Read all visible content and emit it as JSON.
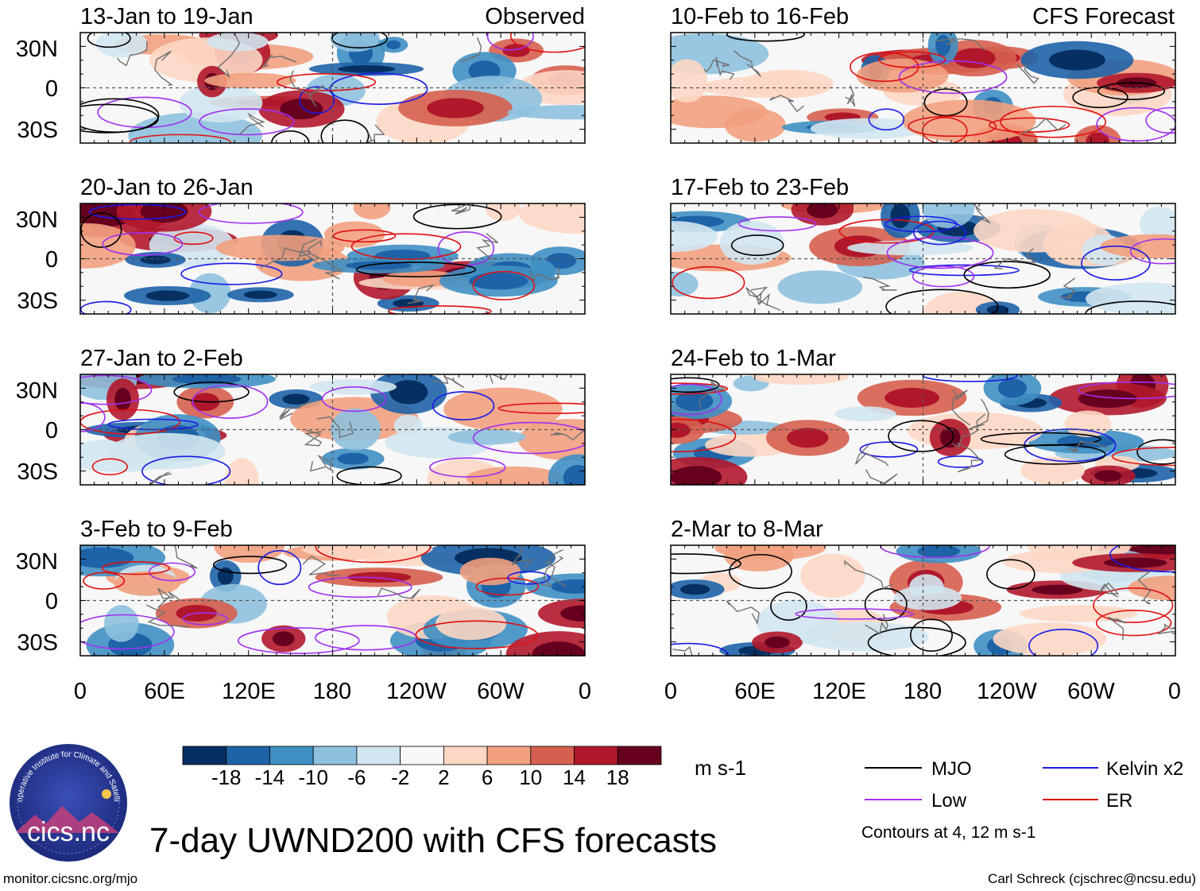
{
  "figure": {
    "title": "7-day UWND200 with CFS forecasts",
    "footer_left": "monitor.cicsnc.org/mjo",
    "footer_right": "Carl Schreck (cjschrec@ncsu.edu)",
    "logo_text": "cics.nc",
    "logo_ring_text": "Cooperative Institute for Climate and Satellites"
  },
  "chart_data": {
    "type": "heatmap",
    "variable": "200-hPa zonal wind anomaly",
    "units": "m s-1",
    "columns": [
      {
        "label": "Observed",
        "panels": [
          {
            "title": "13-Jan to 19-Jan"
          },
          {
            "title": "20-Jan to 26-Jan"
          },
          {
            "title": "27-Jan to 2-Feb"
          },
          {
            "title": "3-Feb to 9-Feb"
          }
        ]
      },
      {
        "label": "CFS Forecast",
        "panels": [
          {
            "title": "10-Feb to 16-Feb"
          },
          {
            "title": "17-Feb to 23-Feb"
          },
          {
            "title": "24-Feb to 1-Mar"
          },
          {
            "title": "2-Mar to 8-Mar"
          }
        ]
      }
    ],
    "y_ticks": [
      "30N",
      "0",
      "30S"
    ],
    "y_range_deg": [
      -40,
      40
    ],
    "x_ticks": [
      "0",
      "60E",
      "120E",
      "180",
      "120W",
      "60W",
      "0"
    ],
    "x_range_deg": [
      0,
      360
    ],
    "colorbar": {
      "tick_labels": [
        "-18",
        "-14",
        "-10",
        "-6",
        "-2",
        "2",
        "6",
        "10",
        "14",
        "18"
      ],
      "units": "m s-1",
      "colors": [
        "#053061",
        "#1e63a8",
        "#3f8fc3",
        "#8ec1de",
        "#d1e5f0",
        "#f7f7f7",
        "#fdd7c4",
        "#f2a07e",
        "#d65f4f",
        "#b1172b",
        "#67001f"
      ]
    },
    "legend": {
      "items": [
        {
          "label": "MJO",
          "color": "#000000"
        },
        {
          "label": "Kelvin x2",
          "color": "#1a1ae6"
        },
        {
          "label": "Low",
          "color": "#a030f0"
        },
        {
          "label": "ER",
          "color": "#e01010"
        }
      ],
      "note": "Contours at 4, 12 m s-1"
    }
  }
}
